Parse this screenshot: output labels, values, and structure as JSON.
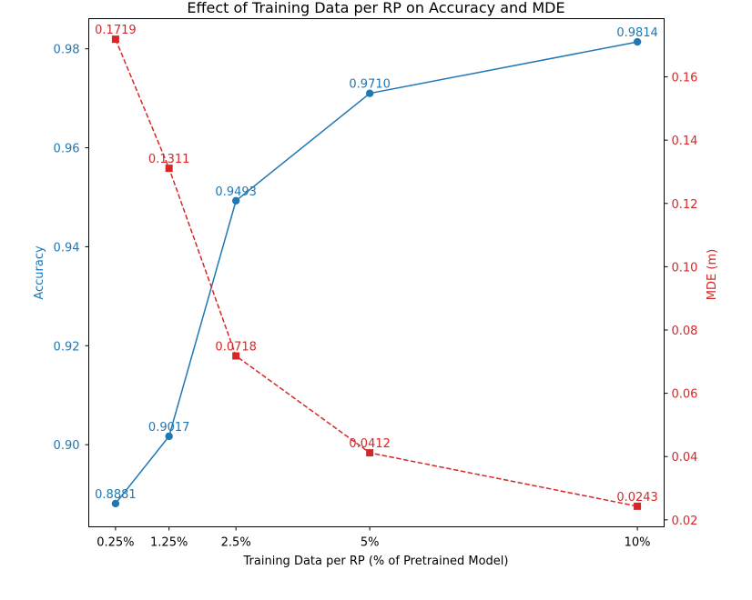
{
  "chart_data": {
    "type": "line",
    "title": "Effect of Training Data per RP on Accuracy and MDE",
    "xlabel": "Training Data per RP (% of Pretrained Model)",
    "ylabel_left": "Accuracy",
    "ylabel_right": "MDE (m)",
    "x": [
      0.25,
      1.25,
      2.5,
      5,
      10
    ],
    "x_tick_labels": [
      "0.25%",
      "1.25%",
      "2.5%",
      "5%",
      "10%"
    ],
    "xlim": [
      -0.25,
      10.5
    ],
    "ylim_left": [
      0.8834,
      0.9861
    ],
    "ylim_right": [
      0.0178,
      0.1784
    ],
    "yticks_left": [
      "0.90",
      "0.92",
      "0.94",
      "0.96",
      "0.98"
    ],
    "yticks_right": [
      "0.02",
      "0.04",
      "0.06",
      "0.08",
      "0.10",
      "0.12",
      "0.14",
      "0.16"
    ],
    "grid": false,
    "series": [
      {
        "axis": "left",
        "values": [
          0.8881,
          0.9017,
          0.9493,
          0.971,
          0.9814
        ],
        "labels": [
          "0.8881",
          "0.9017",
          "0.9493",
          "0.9710",
          "0.9814"
        ],
        "color": "#1f77b4",
        "line_style": "solid",
        "marker": "circle"
      },
      {
        "axis": "right",
        "values": [
          0.1719,
          0.1311,
          0.0718,
          0.0412,
          0.0243
        ],
        "labels": [
          "0.1719",
          "0.1311",
          "0.0718",
          "0.0412",
          "0.0243"
        ],
        "color": "#d62728",
        "line_style": "dashed",
        "marker": "square"
      }
    ]
  }
}
